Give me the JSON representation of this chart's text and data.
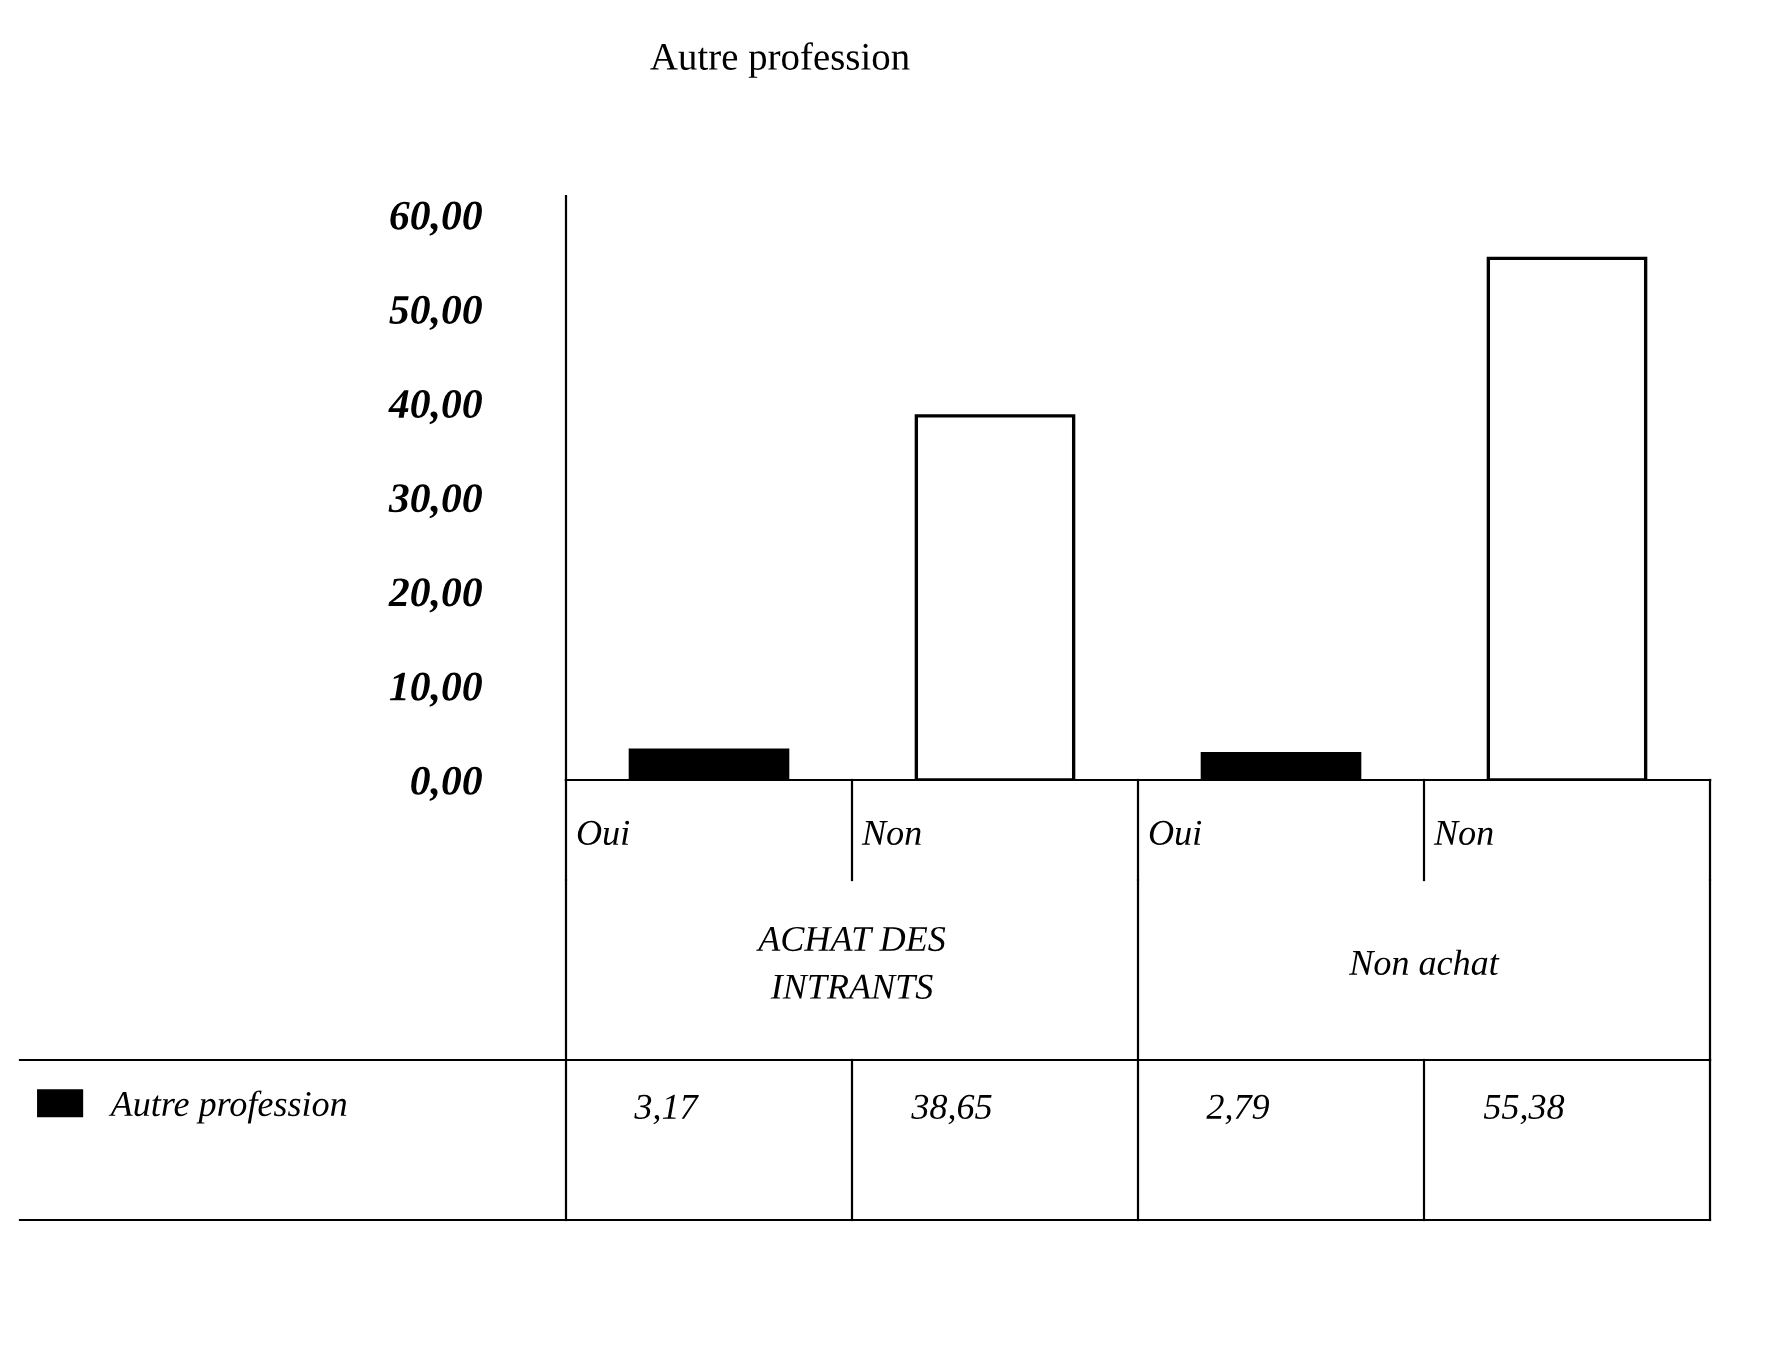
{
  "chart_data": {
    "type": "bar",
    "title": "Autre profession",
    "categories": [
      "Oui",
      "Non",
      "Oui",
      "Non"
    ],
    "series": [
      {
        "name": "Autre profession",
        "colors": [
          "#000000",
          "#ffffff",
          "#000000",
          "#ffffff"
        ],
        "values": [
          3.17,
          38.65,
          2.79,
          55.38
        ],
        "value_labels": [
          "3,17",
          "38,65",
          "2,79",
          "55,38"
        ]
      }
    ],
    "annotations": [
      "ACHAT DES\nINTRANTS",
      "Non achat"
    ],
    "ylim": [
      0,
      62
    ],
    "yticks": [
      {
        "value": 0,
        "label": "0,00"
      },
      {
        "value": 10,
        "label": "10,00"
      },
      {
        "value": 20,
        "label": "20,00"
      },
      {
        "value": 30,
        "label": "30,00"
      },
      {
        "value": 40,
        "label": "40,00"
      },
      {
        "value": 50,
        "label": "50,00"
      },
      {
        "value": 60,
        "label": "60,00"
      }
    ],
    "legend": "bottom left",
    "grid": false
  }
}
